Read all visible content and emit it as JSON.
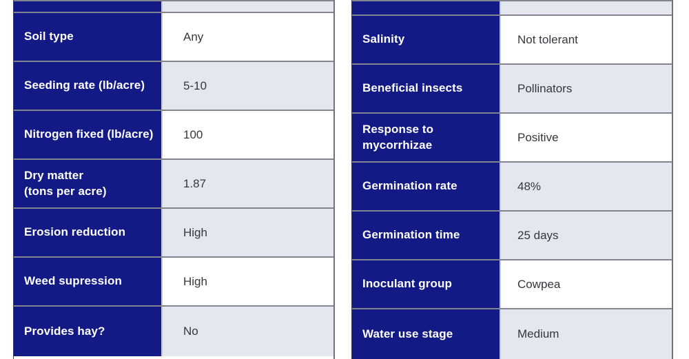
{
  "colors": {
    "navy": "#131a86",
    "row_alt": "#e4e6f0",
    "row_white": "#ffffff",
    "border": "#82858f",
    "divider": "#c5c8da",
    "outer_left": "#3a3d52",
    "outer_right": "#6f727a",
    "label_text": "#ffffff",
    "value_text": "#34373c",
    "page_bg": "#ffffff"
  },
  "tables": [
    {
      "side": "left",
      "rows": [
        {
          "label": "",
          "value": ""
        },
        {
          "label": "Soil type",
          "value": "Any"
        },
        {
          "label": "Seeding rate (lb/acre)",
          "value": "5-10"
        },
        {
          "label": "Nitrogen fixed (lb/acre)",
          "value": "100"
        },
        {
          "label": "Dry matter\n(tons per acre)",
          "value": "1.87"
        },
        {
          "label": "Erosion reduction",
          "value": "High"
        },
        {
          "label": "Weed supression",
          "value": "High"
        },
        {
          "label": "Provides hay?",
          "value": "No"
        }
      ]
    },
    {
      "side": "right",
      "rows": [
        {
          "label": "",
          "value": ""
        },
        {
          "label": "Salinity",
          "value": "Not tolerant"
        },
        {
          "label": "Beneficial insects",
          "value": "Pollinators"
        },
        {
          "label": "Response to\nmycorrhizae",
          "value": "Positive"
        },
        {
          "label": "Germination rate",
          "value": "48%"
        },
        {
          "label": "Germination time",
          "value": "25 days"
        },
        {
          "label": "Inoculant group",
          "value": "Cowpea"
        },
        {
          "label": "Water use stage",
          "value": "Medium"
        }
      ]
    }
  ]
}
